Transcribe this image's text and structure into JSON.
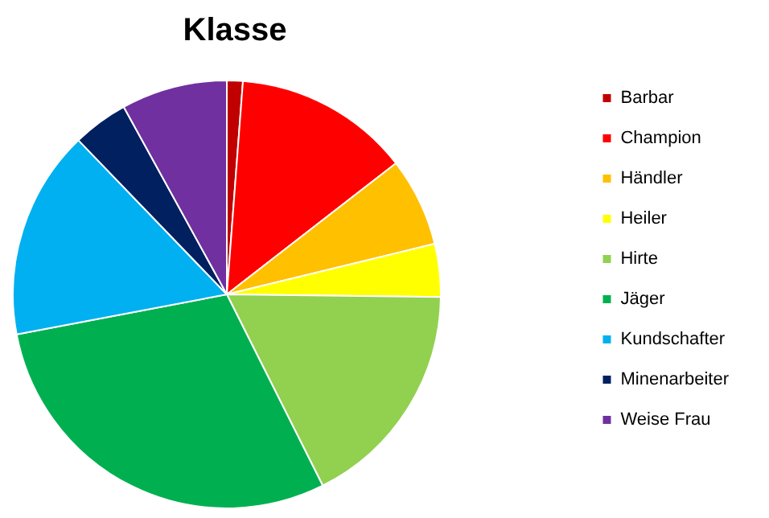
{
  "chart_data": {
    "type": "pie",
    "title": "Klasse",
    "categories": [
      "Barbar",
      "Champion",
      "Händler",
      "Heiler",
      "Hirte",
      "Jäger",
      "Kundschafter",
      "Minenarbeiter",
      "Weise Frau"
    ],
    "values": [
      1.2,
      13.3,
      6.7,
      4.0,
      17.4,
      29.4,
      15.8,
      4.2,
      8.0
    ],
    "colors": [
      "#c00000",
      "#ff0000",
      "#ffc000",
      "#ffff00",
      "#92d050",
      "#00b050",
      "#00b0f0",
      "#002060",
      "#7030a0"
    ],
    "legend": "right"
  }
}
